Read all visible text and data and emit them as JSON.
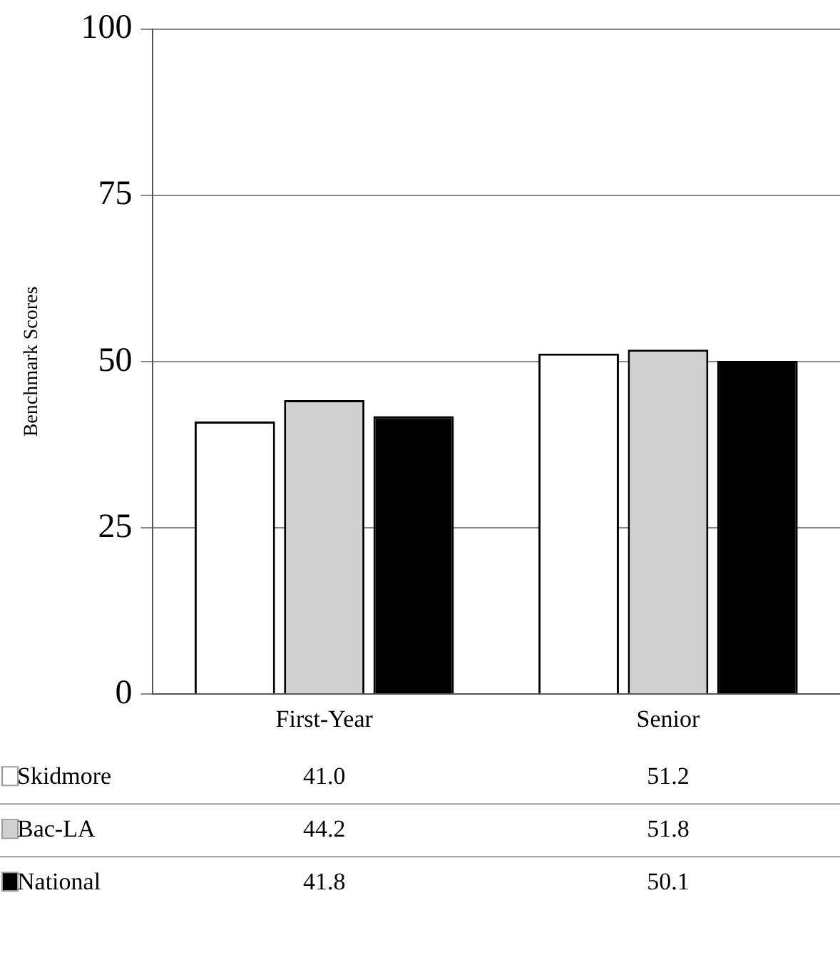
{
  "chart_data": {
    "type": "bar",
    "ylabel": "Benchmark Scores",
    "categories": [
      "First-Year",
      "Senior"
    ],
    "series": [
      {
        "name": "Skidmore",
        "color": "#ffffff",
        "values": [
          41.0,
          51.2
        ],
        "value_labels": [
          "41.0",
          "51.2"
        ]
      },
      {
        "name": "Bac-LA",
        "color": "#d0d0d0",
        "values": [
          44.2,
          51.8
        ],
        "value_labels": [
          "44.2",
          "51.8"
        ]
      },
      {
        "name": "National",
        "color": "#000000",
        "values": [
          41.8,
          50.1
        ],
        "value_labels": [
          "41.8",
          "50.1"
        ]
      }
    ],
    "ylim": [
      0,
      100
    ],
    "yticks": [
      0,
      25,
      50,
      75,
      100
    ],
    "grid": "y",
    "legend": "bottom"
  }
}
